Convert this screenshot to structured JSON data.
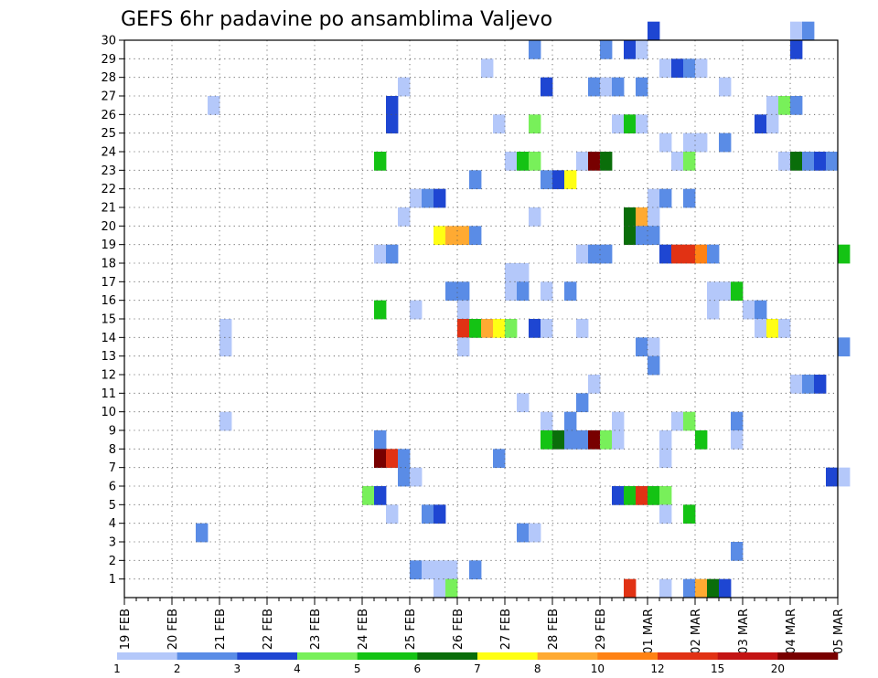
{
  "chart_data": {
    "type": "heatmap",
    "title": "GEFS 6hr padavine po ansamblima Valjevo",
    "y_ticks": [
      "1",
      "2",
      "3",
      "4",
      "5",
      "6",
      "7",
      "8",
      "9",
      "10",
      "11",
      "12",
      "13",
      "14",
      "15",
      "16",
      "17",
      "18",
      "19",
      "20",
      "21",
      "22",
      "23",
      "24",
      "25",
      "26",
      "27",
      "28",
      "29",
      "30"
    ],
    "x_ticks": [
      "19 FEB",
      "20 FEB",
      "21 FEB",
      "22 FEB",
      "23 FEB",
      "24 FEB",
      "25 FEB",
      "26 FEB",
      "27 FEB",
      "28 FEB",
      "29 FEB",
      "01 MAR",
      "02 MAR",
      "03 MAR",
      "04 MAR",
      "05 MAR"
    ],
    "x_range": [
      "19 FEB 00Z",
      "05 MAR 00Z"
    ],
    "time_step_hours": 6,
    "y_range": [
      0,
      30
    ],
    "grid": true,
    "colorbar": {
      "position": "bottom",
      "tick_labels": [
        "1",
        "2",
        "3",
        "4",
        "5",
        "6",
        "7",
        "8",
        "10",
        "12",
        "15",
        "20"
      ],
      "colors": [
        "#b4c8fa",
        "#5a8ce6",
        "#1e46d2",
        "#78f05a",
        "#14c314",
        "#0a6e0a",
        "#ffff14",
        "#ffaa32",
        "#ff8214",
        "#e13214",
        "#c31414",
        "#780000"
      ]
    },
    "cells": [
      {
        "m": 30,
        "t": "01 MAR 00Z",
        "c": 3
      },
      {
        "m": 30,
        "t": "04 MAR 00Z",
        "c": 1
      },
      {
        "m": 30,
        "t": "04 MAR 06Z",
        "c": 2
      },
      {
        "m": 29,
        "t": "27 FEB 12Z",
        "c": 2
      },
      {
        "m": 29,
        "t": "29 FEB 00Z",
        "c": 2
      },
      {
        "m": 29,
        "t": "29 FEB 12Z",
        "c": 3
      },
      {
        "m": 29,
        "t": "29 FEB 18Z",
        "c": 1
      },
      {
        "m": 29,
        "t": "04 MAR 00Z",
        "c": 3
      },
      {
        "m": 28,
        "t": "26 FEB 12Z",
        "c": 1
      },
      {
        "m": 28,
        "t": "01 MAR 06Z",
        "c": 1
      },
      {
        "m": 28,
        "t": "01 MAR 12Z",
        "c": 3
      },
      {
        "m": 28,
        "t": "01 MAR 18Z",
        "c": 2
      },
      {
        "m": 28,
        "t": "02 MAR 00Z",
        "c": 1
      },
      {
        "m": 27,
        "t": "24 FEB 18Z",
        "c": 1
      },
      {
        "m": 27,
        "t": "27 FEB 18Z",
        "c": 3
      },
      {
        "m": 27,
        "t": "28 FEB 18Z",
        "c": 2
      },
      {
        "m": 27,
        "t": "29 FEB 00Z",
        "c": 1
      },
      {
        "m": 27,
        "t": "29 FEB 06Z",
        "c": 2
      },
      {
        "m": 27,
        "t": "29 FEB 18Z",
        "c": 2
      },
      {
        "m": 27,
        "t": "02 MAR 12Z",
        "c": 1
      },
      {
        "m": 26,
        "t": "20 FEB 18Z",
        "c": 1
      },
      {
        "m": 26,
        "t": "24 FEB 12Z",
        "c": 3
      },
      {
        "m": 26,
        "t": "03 MAR 12Z",
        "c": 1
      },
      {
        "m": 26,
        "t": "03 MAR 18Z",
        "c": 4
      },
      {
        "m": 26,
        "t": "04 MAR 00Z",
        "c": 2
      },
      {
        "m": 25,
        "t": "24 FEB 12Z",
        "c": 3
      },
      {
        "m": 25,
        "t": "26 FEB 18Z",
        "c": 1
      },
      {
        "m": 25,
        "t": "27 FEB 12Z",
        "c": 4
      },
      {
        "m": 25,
        "t": "29 FEB 06Z",
        "c": 1
      },
      {
        "m": 25,
        "t": "29 FEB 12Z",
        "c": 5
      },
      {
        "m": 25,
        "t": "29 FEB 18Z",
        "c": 1
      },
      {
        "m": 25,
        "t": "03 MAR 06Z",
        "c": 3
      },
      {
        "m": 25,
        "t": "03 MAR 12Z",
        "c": 1
      },
      {
        "m": 24,
        "t": "01 MAR 06Z",
        "c": 1
      },
      {
        "m": 24,
        "t": "01 MAR 18Z",
        "c": 1
      },
      {
        "m": 24,
        "t": "02 MAR 00Z",
        "c": 1
      },
      {
        "m": 24,
        "t": "02 MAR 12Z",
        "c": 2
      },
      {
        "m": 23,
        "t": "24 FEB 06Z",
        "c": 5
      },
      {
        "m": 23,
        "t": "27 FEB 00Z",
        "c": 1
      },
      {
        "m": 23,
        "t": "27 FEB 06Z",
        "c": 5
      },
      {
        "m": 23,
        "t": "27 FEB 12Z",
        "c": 4
      },
      {
        "m": 23,
        "t": "28 FEB 12Z",
        "c": 1
      },
      {
        "m": 23,
        "t": "28 FEB 18Z",
        "c": 12
      },
      {
        "m": 23,
        "t": "29 FEB 00Z",
        "c": 6
      },
      {
        "m": 23,
        "t": "01 MAR 12Z",
        "c": 1
      },
      {
        "m": 23,
        "t": "01 MAR 18Z",
        "c": 4
      },
      {
        "m": 23,
        "t": "03 MAR 18Z",
        "c": 1
      },
      {
        "m": 23,
        "t": "04 MAR 00Z",
        "c": 6
      },
      {
        "m": 23,
        "t": "04 MAR 06Z",
        "c": 2
      },
      {
        "m": 23,
        "t": "04 MAR 12Z",
        "c": 3
      },
      {
        "m": 23,
        "t": "04 MAR 18Z",
        "c": 2
      },
      {
        "m": 22,
        "t": "26 FEB 06Z",
        "c": 2
      },
      {
        "m": 22,
        "t": "27 FEB 18Z",
        "c": 2
      },
      {
        "m": 22,
        "t": "28 FEB 00Z",
        "c": 3
      },
      {
        "m": 22,
        "t": "28 FEB 06Z",
        "c": 7
      },
      {
        "m": 21,
        "t": "25 FEB 00Z",
        "c": 1
      },
      {
        "m": 21,
        "t": "25 FEB 06Z",
        "c": 2
      },
      {
        "m": 21,
        "t": "25 FEB 12Z",
        "c": 3
      },
      {
        "m": 21,
        "t": "01 MAR 00Z",
        "c": 1
      },
      {
        "m": 21,
        "t": "01 MAR 06Z",
        "c": 2
      },
      {
        "m": 21,
        "t": "01 MAR 18Z",
        "c": 2
      },
      {
        "m": 20,
        "t": "24 FEB 18Z",
        "c": 1
      },
      {
        "m": 20,
        "t": "27 FEB 12Z",
        "c": 1
      },
      {
        "m": 20,
        "t": "29 FEB 12Z",
        "c": 6
      },
      {
        "m": 20,
        "t": "29 FEB 18Z",
        "c": 8
      },
      {
        "m": 20,
        "t": "01 MAR 00Z",
        "c": 1
      },
      {
        "m": 19,
        "t": "25 FEB 12Z",
        "c": 7
      },
      {
        "m": 19,
        "t": "25 FEB 18Z",
        "c": 8
      },
      {
        "m": 19,
        "t": "26 FEB 00Z",
        "c": 8
      },
      {
        "m": 19,
        "t": "26 FEB 06Z",
        "c": 2
      },
      {
        "m": 19,
        "t": "29 FEB 12Z",
        "c": 6
      },
      {
        "m": 19,
        "t": "29 FEB 18Z",
        "c": 2
      },
      {
        "m": 19,
        "t": "01 MAR 00Z",
        "c": 2
      },
      {
        "m": 18,
        "t": "24 FEB 06Z",
        "c": 1
      },
      {
        "m": 18,
        "t": "24 FEB 12Z",
        "c": 2
      },
      {
        "m": 18,
        "t": "28 FEB 12Z",
        "c": 1
      },
      {
        "m": 18,
        "t": "28 FEB 18Z",
        "c": 2
      },
      {
        "m": 18,
        "t": "29 FEB 00Z",
        "c": 2
      },
      {
        "m": 18,
        "t": "01 MAR 06Z",
        "c": 3
      },
      {
        "m": 18,
        "t": "01 MAR 12Z",
        "c": 10
      },
      {
        "m": 18,
        "t": "01 MAR 18Z",
        "c": 10
      },
      {
        "m": 18,
        "t": "02 MAR 00Z",
        "c": 9
      },
      {
        "m": 18,
        "t": "02 MAR 06Z",
        "c": 2
      },
      {
        "m": 18,
        "t": "05 MAR 00Z",
        "c": 5
      },
      {
        "m": 17,
        "t": "27 FEB 00Z",
        "c": 1
      },
      {
        "m": 17,
        "t": "27 FEB 06Z",
        "c": 1
      },
      {
        "m": 16,
        "t": "25 FEB 18Z",
        "c": 2
      },
      {
        "m": 16,
        "t": "26 FEB 00Z",
        "c": 2
      },
      {
        "m": 16,
        "t": "27 FEB 00Z",
        "c": 1
      },
      {
        "m": 16,
        "t": "27 FEB 06Z",
        "c": 2
      },
      {
        "m": 16,
        "t": "27 FEB 18Z",
        "c": 1
      },
      {
        "m": 16,
        "t": "28 FEB 06Z",
        "c": 2
      },
      {
        "m": 16,
        "t": "02 MAR 06Z",
        "c": 1
      },
      {
        "m": 16,
        "t": "02 MAR 12Z",
        "c": 1
      },
      {
        "m": 16,
        "t": "02 MAR 18Z",
        "c": 5
      },
      {
        "m": 15,
        "t": "24 FEB 06Z",
        "c": 5
      },
      {
        "m": 15,
        "t": "25 FEB 00Z",
        "c": 1
      },
      {
        "m": 15,
        "t": "26 FEB 00Z",
        "c": 1
      },
      {
        "m": 15,
        "t": "02 MAR 06Z",
        "c": 1
      },
      {
        "m": 15,
        "t": "03 MAR 00Z",
        "c": 1
      },
      {
        "m": 15,
        "t": "03 MAR 06Z",
        "c": 2
      },
      {
        "m": 14,
        "t": "21 FEB 00Z",
        "c": 1
      },
      {
        "m": 14,
        "t": "26 FEB 00Z",
        "c": 10
      },
      {
        "m": 14,
        "t": "26 FEB 06Z",
        "c": 5
      },
      {
        "m": 14,
        "t": "26 FEB 12Z",
        "c": 8
      },
      {
        "m": 14,
        "t": "26 FEB 18Z",
        "c": 7
      },
      {
        "m": 14,
        "t": "27 FEB 00Z",
        "c": 4
      },
      {
        "m": 14,
        "t": "27 FEB 12Z",
        "c": 3
      },
      {
        "m": 14,
        "t": "27 FEB 18Z",
        "c": 1
      },
      {
        "m": 14,
        "t": "28 FEB 12Z",
        "c": 1
      },
      {
        "m": 14,
        "t": "03 MAR 06Z",
        "c": 1
      },
      {
        "m": 14,
        "t": "03 MAR 12Z",
        "c": 7
      },
      {
        "m": 14,
        "t": "03 MAR 18Z",
        "c": 1
      },
      {
        "m": 13,
        "t": "21 FEB 00Z",
        "c": 1
      },
      {
        "m": 13,
        "t": "26 FEB 00Z",
        "c": 1
      },
      {
        "m": 13,
        "t": "29 FEB 18Z",
        "c": 2
      },
      {
        "m": 13,
        "t": "01 MAR 00Z",
        "c": 1
      },
      {
        "m": 13,
        "t": "05 MAR 00Z",
        "c": 2
      },
      {
        "m": 12,
        "t": "01 MAR 00Z",
        "c": 2
      },
      {
        "m": 11,
        "t": "28 FEB 18Z",
        "c": 1
      },
      {
        "m": 11,
        "t": "04 MAR 00Z",
        "c": 1
      },
      {
        "m": 11,
        "t": "04 MAR 06Z",
        "c": 2
      },
      {
        "m": 11,
        "t": "04 MAR 12Z",
        "c": 3
      },
      {
        "m": 10,
        "t": "27 FEB 06Z",
        "c": 1
      },
      {
        "m": 10,
        "t": "28 FEB 12Z",
        "c": 2
      },
      {
        "m": 9,
        "t": "21 FEB 00Z",
        "c": 1
      },
      {
        "m": 9,
        "t": "27 FEB 18Z",
        "c": 1
      },
      {
        "m": 9,
        "t": "28 FEB 06Z",
        "c": 2
      },
      {
        "m": 9,
        "t": "29 FEB 06Z",
        "c": 1
      },
      {
        "m": 9,
        "t": "01 MAR 12Z",
        "c": 1
      },
      {
        "m": 9,
        "t": "01 MAR 18Z",
        "c": 4
      },
      {
        "m": 9,
        "t": "02 MAR 18Z",
        "c": 2
      },
      {
        "m": 8,
        "t": "24 FEB 06Z",
        "c": 2
      },
      {
        "m": 8,
        "t": "27 FEB 18Z",
        "c": 5
      },
      {
        "m": 8,
        "t": "28 FEB 00Z",
        "c": 6
      },
      {
        "m": 8,
        "t": "28 FEB 06Z",
        "c": 2
      },
      {
        "m": 8,
        "t": "28 FEB 12Z",
        "c": 2
      },
      {
        "m": 8,
        "t": "28 FEB 18Z",
        "c": 12
      },
      {
        "m": 8,
        "t": "29 FEB 00Z",
        "c": 4
      },
      {
        "m": 8,
        "t": "29 FEB 06Z",
        "c": 1
      },
      {
        "m": 8,
        "t": "01 MAR 06Z",
        "c": 1
      },
      {
        "m": 8,
        "t": "02 MAR 00Z",
        "c": 5
      },
      {
        "m": 8,
        "t": "02 MAR 18Z",
        "c": 1
      },
      {
        "m": 7,
        "t": "24 FEB 06Z",
        "c": 12
      },
      {
        "m": 7,
        "t": "24 FEB 12Z",
        "c": 10
      },
      {
        "m": 7,
        "t": "24 FEB 18Z",
        "c": 2
      },
      {
        "m": 7,
        "t": "26 FEB 18Z",
        "c": 2
      },
      {
        "m": 7,
        "t": "01 MAR 06Z",
        "c": 1
      },
      {
        "m": 6,
        "t": "24 FEB 18Z",
        "c": 2
      },
      {
        "m": 6,
        "t": "25 FEB 00Z",
        "c": 1
      },
      {
        "m": 6,
        "t": "04 MAR 18Z",
        "c": 3
      },
      {
        "m": 6,
        "t": "05 MAR 00Z",
        "c": 1
      },
      {
        "m": 5,
        "t": "24 FEB 00Z",
        "c": 4
      },
      {
        "m": 5,
        "t": "24 FEB 06Z",
        "c": 3
      },
      {
        "m": 5,
        "t": "29 FEB 06Z",
        "c": 3
      },
      {
        "m": 5,
        "t": "29 FEB 12Z",
        "c": 5
      },
      {
        "m": 5,
        "t": "29 FEB 18Z",
        "c": 10
      },
      {
        "m": 5,
        "t": "01 MAR 00Z",
        "c": 5
      },
      {
        "m": 5,
        "t": "01 MAR 06Z",
        "c": 4
      },
      {
        "m": 4,
        "t": "24 FEB 12Z",
        "c": 1
      },
      {
        "m": 4,
        "t": "25 FEB 06Z",
        "c": 2
      },
      {
        "m": 4,
        "t": "25 FEB 12Z",
        "c": 3
      },
      {
        "m": 4,
        "t": "01 MAR 06Z",
        "c": 1
      },
      {
        "m": 4,
        "t": "01 MAR 18Z",
        "c": 5
      },
      {
        "m": 3,
        "t": "20 FEB 12Z",
        "c": 2
      },
      {
        "m": 3,
        "t": "27 FEB 06Z",
        "c": 2
      },
      {
        "m": 3,
        "t": "27 FEB 12Z",
        "c": 1
      },
      {
        "m": 2,
        "t": "02 MAR 18Z",
        "c": 2
      },
      {
        "m": 1,
        "t": "25 FEB 00Z",
        "c": 2
      },
      {
        "m": 1,
        "t": "25 FEB 06Z",
        "c": 1
      },
      {
        "m": 1,
        "t": "25 FEB 12Z",
        "c": 1
      },
      {
        "m": 1,
        "t": "25 FEB 18Z",
        "c": 1
      },
      {
        "m": 1,
        "t": "26 FEB 06Z",
        "c": 2
      },
      {
        "m": 0,
        "t": "25 FEB 12Z",
        "c": 1
      },
      {
        "m": 0,
        "t": "25 FEB 18Z",
        "c": 4
      },
      {
        "m": 0,
        "t": "29 FEB 12Z",
        "c": 10
      },
      {
        "m": 0,
        "t": "01 MAR 06Z",
        "c": 1
      },
      {
        "m": 0,
        "t": "01 MAR 18Z",
        "c": 2
      },
      {
        "m": 0,
        "t": "02 MAR 00Z",
        "c": 8
      },
      {
        "m": 0,
        "t": "02 MAR 06Z",
        "c": 6
      },
      {
        "m": 0,
        "t": "02 MAR 12Z",
        "c": 3
      }
    ]
  }
}
